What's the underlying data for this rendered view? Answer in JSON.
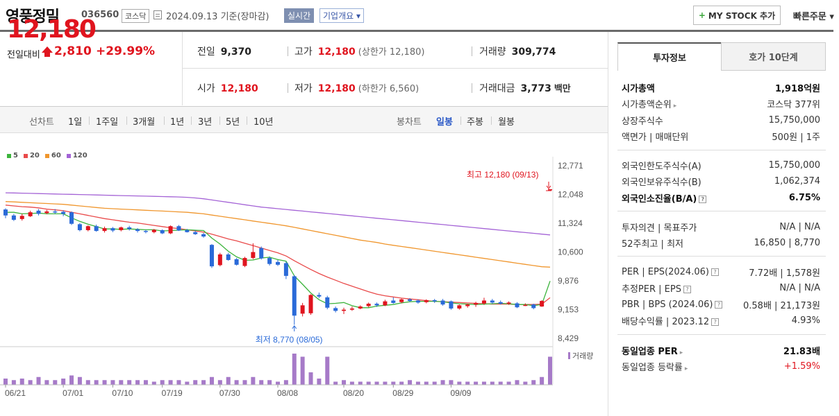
{
  "header": {
    "company": "영풍정밀",
    "code": "036560",
    "market": "코스닥",
    "date_text": "2024.09.13  기준(장마감)",
    "realtime_label": "실시간",
    "overview_label": "기업개요 ▾",
    "mystock_label": "MY STOCK 추가",
    "quick_order_label": "빠른주문 ▾"
  },
  "price": {
    "current": "12,180",
    "change_label": "전일대비",
    "change": "2,810",
    "change_pct": "+29.99%"
  },
  "stats": {
    "prev_close_label": "전일",
    "prev_close": "9,370",
    "high_label": "고가",
    "high": "12,180",
    "upper_limit": "(상한가 12,180)",
    "volume_label": "거래량",
    "volume": "309,774",
    "open_label": "시가",
    "open": "12,180",
    "low_label": "저가",
    "low": "12,180",
    "lower_limit": "(하한가 6,560)",
    "amount_label": "거래대금",
    "amount": "3,773",
    "amount_unit": "백만"
  },
  "period_bar": {
    "line_chart_label": "선차트",
    "periods": [
      "1일",
      "1주일",
      "3개월",
      "1년",
      "3년",
      "5년",
      "10년"
    ],
    "candle_chart_label": "봉차트",
    "candles": [
      "일봉",
      "주봉",
      "월봉"
    ],
    "selected_candle": "일봉"
  },
  "chart_data": {
    "type": "candlestick",
    "legend": [
      "5",
      "20",
      "60",
      "120"
    ],
    "ma_colors": {
      "5": "#3cb43c",
      "20": "#e94a4a",
      "60": "#f0962d",
      "120": "#a463d6"
    },
    "up_color": "#e0141e",
    "down_color": "#2a6ad8",
    "y_ticks": [
      "12,771",
      "12,048",
      "11,324",
      "10,600",
      "9,876",
      "9,153",
      "8,429"
    ],
    "ylim": [
      8429,
      12771
    ],
    "x_labels": [
      "06/21",
      "07/01",
      "07/10",
      "07/19",
      "07/30",
      "08/08",
      "08/20",
      "08/29",
      "09/09"
    ],
    "high_annotation": "최고 12,180 (09/13)",
    "low_annotation": "최저 8,770 (08/05)",
    "volume_label": "거래량",
    "candles": [
      {
        "o": 11670,
        "c": 11520,
        "h": 11700,
        "l": 11450,
        "v": 4
      },
      {
        "o": 11520,
        "c": 11410,
        "h": 11560,
        "l": 11380,
        "v": 3
      },
      {
        "o": 11430,
        "c": 11510,
        "h": 11560,
        "l": 11390,
        "v": 4
      },
      {
        "o": 11500,
        "c": 11600,
        "h": 11640,
        "l": 11480,
        "v": 3
      },
      {
        "o": 11640,
        "c": 11560,
        "h": 11680,
        "l": 11520,
        "v": 5
      },
      {
        "o": 11580,
        "c": 11620,
        "h": 11660,
        "l": 11550,
        "v": 3
      },
      {
        "o": 11620,
        "c": 11600,
        "h": 11680,
        "l": 11560,
        "v": 3
      },
      {
        "o": 11610,
        "c": 11560,
        "h": 11650,
        "l": 11500,
        "v": 4
      },
      {
        "o": 11600,
        "c": 11310,
        "h": 11620,
        "l": 11280,
        "v": 6
      },
      {
        "o": 11300,
        "c": 11150,
        "h": 11330,
        "l": 11120,
        "v": 5
      },
      {
        "o": 11150,
        "c": 11250,
        "h": 11270,
        "l": 11120,
        "v": 3
      },
      {
        "o": 11250,
        "c": 11130,
        "h": 11290,
        "l": 11110,
        "v": 3
      },
      {
        "o": 11130,
        "c": 11200,
        "h": 11240,
        "l": 11090,
        "v": 3
      },
      {
        "o": 11200,
        "c": 11140,
        "h": 11230,
        "l": 11100,
        "v": 3
      },
      {
        "o": 11150,
        "c": 11220,
        "h": 11240,
        "l": 11120,
        "v": 3
      },
      {
        "o": 11220,
        "c": 11180,
        "h": 11260,
        "l": 11140,
        "v": 3
      },
      {
        "o": 11170,
        "c": 11130,
        "h": 11200,
        "l": 11090,
        "v": 3
      },
      {
        "o": 11130,
        "c": 11110,
        "h": 11160,
        "l": 11070,
        "v": 3
      },
      {
        "o": 11100,
        "c": 11160,
        "h": 11180,
        "l": 11070,
        "v": 2
      },
      {
        "o": 11150,
        "c": 11070,
        "h": 11170,
        "l": 11050,
        "v": 3
      },
      {
        "o": 11070,
        "c": 11250,
        "h": 11270,
        "l": 11050,
        "v": 3
      },
      {
        "o": 11250,
        "c": 11140,
        "h": 11280,
        "l": 11130,
        "v": 3
      },
      {
        "o": 11150,
        "c": 11100,
        "h": 11180,
        "l": 11090,
        "v": 2
      },
      {
        "o": 11100,
        "c": 11050,
        "h": 11140,
        "l": 11030,
        "v": 3
      },
      {
        "o": 11050,
        "c": 10990,
        "h": 11080,
        "l": 10960,
        "v": 3
      },
      {
        "o": 10780,
        "c": 10240,
        "h": 10800,
        "l": 10200,
        "v": 5
      },
      {
        "o": 10270,
        "c": 10540,
        "h": 10580,
        "l": 10240,
        "v": 3
      },
      {
        "o": 10540,
        "c": 10400,
        "h": 10580,
        "l": 10380,
        "v": 5
      },
      {
        "o": 10420,
        "c": 10280,
        "h": 10450,
        "l": 10260,
        "v": 3
      },
      {
        "o": 10250,
        "c": 10450,
        "h": 10480,
        "l": 10220,
        "v": 3
      },
      {
        "o": 10450,
        "c": 10600,
        "h": 10820,
        "l": 10420,
        "v": 5
      },
      {
        "o": 10700,
        "c": 10440,
        "h": 10740,
        "l": 10410,
        "v": 3
      },
      {
        "o": 10450,
        "c": 10300,
        "h": 10490,
        "l": 10260,
        "v": 3
      },
      {
        "o": 10350,
        "c": 10280,
        "h": 10400,
        "l": 10250,
        "v": 2
      },
      {
        "o": 10320,
        "c": 10000,
        "h": 10360,
        "l": 9920,
        "v": 3
      },
      {
        "o": 9990,
        "c": 9000,
        "h": 10020,
        "l": 8770,
        "v": 20
      },
      {
        "o": 9050,
        "c": 9260,
        "h": 9320,
        "l": 8980,
        "v": 18
      },
      {
        "o": 9060,
        "c": 9520,
        "h": 9540,
        "l": 9020,
        "v": 8
      },
      {
        "o": 9520,
        "c": 9480,
        "h": 9580,
        "l": 9440,
        "v": 4
      },
      {
        "o": 9460,
        "c": 9200,
        "h": 9500,
        "l": 9160,
        "v": 18
      },
      {
        "o": 9190,
        "c": 9120,
        "h": 9230,
        "l": 9080,
        "v": 2
      },
      {
        "o": 9120,
        "c": 9150,
        "h": 9200,
        "l": 9040,
        "v": 3
      },
      {
        "o": 9150,
        "c": 9180,
        "h": 9230,
        "l": 9120,
        "v": 2
      },
      {
        "o": 9180,
        "c": 9230,
        "h": 9260,
        "l": 9160,
        "v": 2
      },
      {
        "o": 9240,
        "c": 9300,
        "h": 9330,
        "l": 9210,
        "v": 2
      },
      {
        "o": 9300,
        "c": 9260,
        "h": 9330,
        "l": 9220,
        "v": 2
      },
      {
        "o": 9260,
        "c": 9360,
        "h": 9400,
        "l": 9240,
        "v": 2
      },
      {
        "o": 9380,
        "c": 9320,
        "h": 9460,
        "l": 9300,
        "v": 2
      },
      {
        "o": 9340,
        "c": 9410,
        "h": 9430,
        "l": 9310,
        "v": 2
      },
      {
        "o": 9410,
        "c": 9370,
        "h": 9440,
        "l": 9340,
        "v": 3
      },
      {
        "o": 9380,
        "c": 9330,
        "h": 9410,
        "l": 9300,
        "v": 2
      },
      {
        "o": 9340,
        "c": 9390,
        "h": 9410,
        "l": 9310,
        "v": 2
      },
      {
        "o": 9390,
        "c": 9360,
        "h": 9420,
        "l": 9320,
        "v": 2
      },
      {
        "o": 9380,
        "c": 9280,
        "h": 9420,
        "l": 9250,
        "v": 3
      },
      {
        "o": 9360,
        "c": 9180,
        "h": 9380,
        "l": 9150,
        "v": 3
      },
      {
        "o": 9180,
        "c": 9260,
        "h": 9280,
        "l": 9150,
        "v": 2
      },
      {
        "o": 9240,
        "c": 9280,
        "h": 9300,
        "l": 9200,
        "v": 2
      },
      {
        "o": 9280,
        "c": 9320,
        "h": 9350,
        "l": 9220,
        "v": 2
      },
      {
        "o": 9310,
        "c": 9380,
        "h": 9450,
        "l": 9270,
        "v": 2
      },
      {
        "o": 9380,
        "c": 9330,
        "h": 9420,
        "l": 9300,
        "v": 2
      },
      {
        "o": 9340,
        "c": 9300,
        "h": 9380,
        "l": 9280,
        "v": 2
      },
      {
        "o": 9300,
        "c": 9330,
        "h": 9360,
        "l": 9270,
        "v": 2
      },
      {
        "o": 9310,
        "c": 9210,
        "h": 9340,
        "l": 9190,
        "v": 3
      },
      {
        "o": 9260,
        "c": 9270,
        "h": 9310,
        "l": 9240,
        "v": 2
      },
      {
        "o": 9280,
        "c": 9190,
        "h": 9300,
        "l": 9160,
        "v": 3
      },
      {
        "o": 9230,
        "c": 9370,
        "h": 9390,
        "l": 9220,
        "v": 5
      },
      {
        "o": 12180,
        "c": 12180,
        "h": 12180,
        "l": 12180,
        "v": 18
      }
    ],
    "ma": {
      "5": [
        11600,
        11600,
        11560,
        11570,
        11580,
        11560,
        11560,
        11560,
        11460,
        11370,
        11300,
        11240,
        11180,
        11180,
        11170,
        11180,
        11170,
        11160,
        11160,
        11130,
        11140,
        11150,
        11160,
        11150,
        11140,
        10950,
        10800,
        10620,
        10480,
        10390,
        10400,
        10450,
        10470,
        10410,
        10370,
        10000,
        9790,
        9570,
        9400,
        9300,
        9310,
        9330,
        9250,
        9200,
        9200,
        9240,
        9260,
        9280,
        9320,
        9350,
        9360,
        9360,
        9360,
        9350,
        9320,
        9300,
        9290,
        9280,
        9290,
        9300,
        9310,
        9300,
        9280,
        9280,
        9250,
        9280,
        9870
      ],
      "20": [
        11780,
        11760,
        11740,
        11730,
        11710,
        11680,
        11660,
        11640,
        11600,
        11560,
        11520,
        11480,
        11440,
        11410,
        11380,
        11350,
        11330,
        11300,
        11270,
        11240,
        11210,
        11190,
        11160,
        11130,
        11100,
        11050,
        10990,
        10930,
        10880,
        10820,
        10760,
        10700,
        10640,
        10580,
        10500,
        10380,
        10270,
        10160,
        10060,
        9970,
        9890,
        9810,
        9740,
        9670,
        9600,
        9540,
        9500,
        9470,
        9440,
        9420,
        9400,
        9380,
        9360,
        9350,
        9340,
        9330,
        9320,
        9310,
        9300,
        9290,
        9290,
        9290,
        9280,
        9280,
        9280,
        9290,
        9450
      ],
      "60": [
        11870,
        11860,
        11850,
        11840,
        11830,
        11820,
        11810,
        11800,
        11780,
        11760,
        11740,
        11720,
        11700,
        11690,
        11680,
        11670,
        11660,
        11650,
        11640,
        11630,
        11620,
        11610,
        11600,
        11580,
        11560,
        11530,
        11500,
        11470,
        11440,
        11410,
        11380,
        11350,
        11320,
        11290,
        11260,
        11220,
        11180,
        11140,
        11100,
        11060,
        11020,
        10980,
        10940,
        10900,
        10870,
        10840,
        10800,
        10770,
        10740,
        10710,
        10680,
        10650,
        10620,
        10590,
        10560,
        10530,
        10500,
        10470,
        10440,
        10410,
        10380,
        10350,
        10320,
        10290,
        10260,
        10230,
        10220
      ],
      "120": [
        12090,
        12085,
        12080,
        12075,
        12070,
        12065,
        12060,
        12055,
        12050,
        12045,
        12040,
        12035,
        12030,
        12025,
        12020,
        12015,
        12010,
        12005,
        12000,
        11995,
        11990,
        11985,
        11975,
        11960,
        11940,
        11910,
        11880,
        11850,
        11820,
        11790,
        11760,
        11730,
        11710,
        11690,
        11670,
        11650,
        11630,
        11610,
        11590,
        11570,
        11550,
        11530,
        11510,
        11490,
        11470,
        11450,
        11430,
        11410,
        11390,
        11370,
        11350,
        11330,
        11310,
        11290,
        11270,
        11250,
        11230,
        11210,
        11190,
        11170,
        11150,
        11130,
        11110,
        11090,
        11070,
        11050,
        11030
      ]
    }
  },
  "side_tabs": [
    "투자정보",
    "호가 10단계"
  ],
  "side": {
    "g1": [
      {
        "l": "시가총액",
        "r": "1,918억원",
        "bold": true
      },
      {
        "l": "시가총액순위",
        "r": "코스닥 377위",
        "arrow": true
      },
      {
        "l": "상장주식수",
        "r": "15,750,000"
      },
      {
        "l": "액면가 | 매매단위",
        "r": "500원 | 1주"
      }
    ],
    "g2": [
      {
        "l": "외국인한도주식수(A)",
        "r": "15,750,000"
      },
      {
        "l": "외국인보유주식수(B)",
        "r": "1,062,374"
      },
      {
        "l": "외국인소진율(B/A)",
        "r": "6.75%",
        "bold": true,
        "q": true
      }
    ],
    "g3": [
      {
        "l": "투자의견 | 목표주가",
        "r": "N/A | N/A"
      },
      {
        "l": "52주최고 | 최저",
        "r": "16,850 | 8,770"
      }
    ],
    "g4": [
      {
        "l": "PER | EPS(2024.06)",
        "r": "7.72배 | 1,578원",
        "q": true
      },
      {
        "l": "추정PER | EPS",
        "r": "N/A | N/A",
        "q": true
      },
      {
        "l": "PBR | BPS (2024.06)",
        "r": "0.58배 | 21,173원",
        "q": true
      },
      {
        "l": "배당수익률 | 2023.12",
        "r": "4.93%",
        "q": true
      }
    ],
    "g5": [
      {
        "l": "동일업종 PER",
        "r": "21.83배",
        "bold": true,
        "arrow": true
      },
      {
        "l": "동일업종 등락률",
        "r": "+1.59%",
        "arrow": true,
        "red": true
      }
    ]
  }
}
